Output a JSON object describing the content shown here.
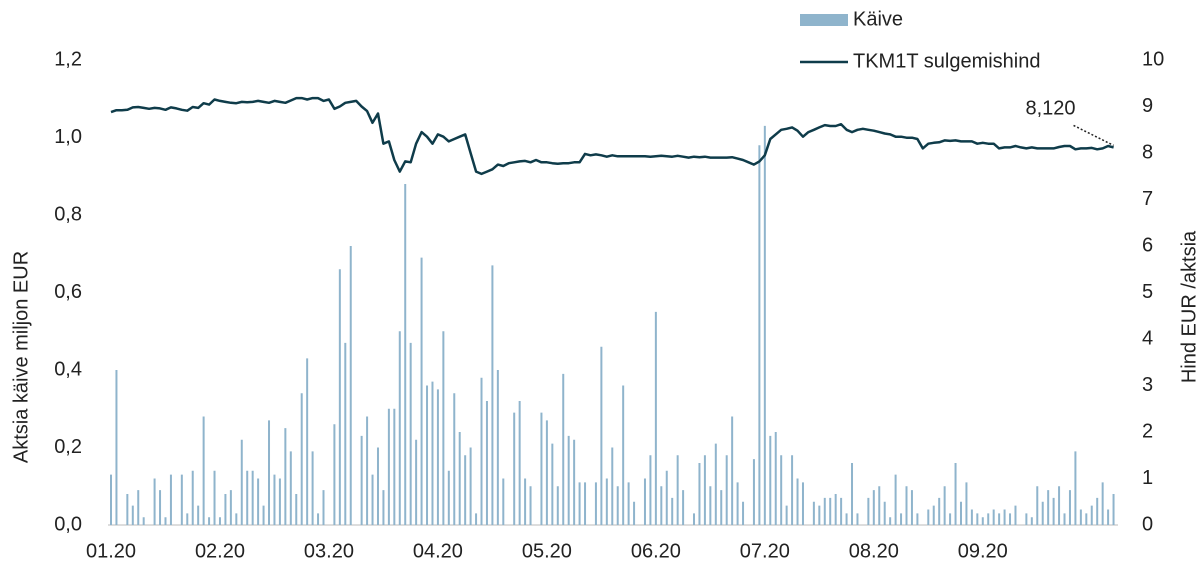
{
  "chart_data": {
    "type": "combo",
    "y_label": "Aktsia käive miljon EUR",
    "y2_label": "Hind EUR /aktsia",
    "categories": [
      "01.20",
      null,
      null,
      null,
      null,
      null,
      null,
      null,
      null,
      null,
      null,
      null,
      null,
      null,
      null,
      null,
      null,
      null,
      null,
      null,
      "02.20",
      null,
      null,
      null,
      null,
      null,
      null,
      null,
      null,
      null,
      null,
      null,
      null,
      null,
      null,
      null,
      null,
      null,
      null,
      null,
      "03.20",
      null,
      null,
      null,
      null,
      null,
      null,
      null,
      null,
      null,
      null,
      null,
      null,
      null,
      null,
      null,
      null,
      null,
      null,
      null,
      "04.20",
      null,
      null,
      null,
      null,
      null,
      null,
      null,
      null,
      null,
      null,
      null,
      null,
      null,
      null,
      null,
      null,
      null,
      null,
      null,
      "05.20",
      null,
      null,
      null,
      null,
      null,
      null,
      null,
      null,
      null,
      null,
      null,
      null,
      null,
      null,
      null,
      null,
      null,
      null,
      null,
      "06.20",
      null,
      null,
      null,
      null,
      null,
      null,
      null,
      null,
      null,
      null,
      null,
      null,
      null,
      null,
      null,
      null,
      null,
      null,
      null,
      "07.20",
      null,
      null,
      null,
      null,
      null,
      null,
      null,
      null,
      null,
      null,
      null,
      null,
      null,
      null,
      null,
      null,
      null,
      null,
      null,
      "08.20",
      null,
      null,
      null,
      null,
      null,
      null,
      null,
      null,
      null,
      null,
      null,
      null,
      null,
      null,
      null,
      null,
      null,
      null,
      null,
      "09.20",
      null,
      null,
      null,
      null,
      null,
      null,
      null,
      null,
      null,
      null,
      null,
      null,
      null,
      null,
      null,
      null,
      null,
      null,
      null,
      null,
      null,
      null,
      null,
      null
    ],
    "series": [
      {
        "name": "Käive",
        "type": "bar",
        "color": "#8fb4cc",
        "values": [
          0.13,
          0.4,
          0.0,
          0.08,
          0.05,
          0.09,
          0.02,
          0.0,
          0.12,
          0.09,
          0.02,
          0.13,
          0.0,
          0.13,
          0.03,
          0.14,
          0.05,
          0.28,
          0.02,
          0.14,
          0.02,
          0.08,
          0.09,
          0.03,
          0.22,
          0.14,
          0.14,
          0.12,
          0.05,
          0.27,
          0.13,
          0.12,
          0.25,
          0.19,
          0.08,
          0.34,
          0.43,
          0.19,
          0.03,
          0.09,
          0.0,
          0.26,
          0.66,
          0.47,
          0.72,
          0.0,
          0.23,
          0.28,
          0.13,
          0.2,
          0.09,
          0.3,
          0.3,
          0.5,
          0.88,
          0.47,
          0.22,
          0.69,
          0.36,
          0.37,
          0.35,
          0.5,
          0.14,
          0.34,
          0.24,
          0.18,
          0.2,
          0.03,
          0.38,
          0.32,
          0.67,
          0.4,
          0.12,
          0.0,
          0.29,
          0.32,
          0.12,
          0.1,
          0.0,
          0.29,
          0.27,
          0.21,
          0.1,
          0.39,
          0.23,
          0.22,
          0.11,
          0.11,
          0.0,
          0.11,
          0.46,
          0.12,
          0.2,
          0.1,
          0.36,
          0.11,
          0.06,
          0.0,
          0.12,
          0.18,
          0.55,
          0.1,
          0.14,
          0.07,
          0.18,
          0.09,
          0.0,
          0.03,
          0.16,
          0.18,
          0.1,
          0.21,
          0.09,
          0.18,
          0.28,
          0.11,
          0.06,
          0.0,
          0.17,
          0.98,
          1.03,
          0.23,
          0.24,
          0.18,
          0.05,
          0.18,
          0.12,
          0.11,
          0.0,
          0.06,
          0.05,
          0.07,
          0.07,
          0.08,
          0.07,
          0.03,
          0.16,
          0.03,
          0.0,
          0.07,
          0.09,
          0.1,
          0.06,
          0.02,
          0.13,
          0.03,
          0.1,
          0.09,
          0.03,
          0.0,
          0.04,
          0.05,
          0.07,
          0.1,
          0.03,
          0.16,
          0.06,
          0.11,
          0.04,
          0.03,
          0.02,
          0.03,
          0.04,
          0.03,
          0.04,
          0.03,
          0.05,
          0.0,
          0.03,
          0.02,
          0.1,
          0.06,
          0.09,
          0.07,
          0.1,
          0.03,
          0.09,
          0.19,
          0.04,
          0.03,
          0.05,
          0.07,
          0.11,
          0.04,
          0.08
        ]
      },
      {
        "name": "TKM1T sulgemishind",
        "type": "line",
        "axis": "y2",
        "color": "#0f3c4a",
        "values": [
          8.88,
          8.92,
          8.92,
          8.93,
          8.98,
          8.99,
          8.97,
          8.95,
          8.97,
          8.96,
          8.93,
          8.98,
          8.96,
          8.93,
          8.91,
          8.99,
          8.97,
          9.07,
          9.04,
          9.15,
          9.12,
          9.1,
          9.08,
          9.07,
          9.1,
          9.09,
          9.1,
          9.12,
          9.1,
          9.08,
          9.12,
          9.1,
          9.08,
          9.13,
          9.18,
          9.18,
          9.15,
          9.18,
          9.18,
          9.12,
          9.15,
          8.95,
          9.0,
          9.08,
          9.1,
          9.12,
          9.0,
          8.9,
          8.65,
          8.85,
          8.2,
          8.25,
          7.85,
          7.6,
          7.82,
          7.8,
          8.2,
          8.45,
          8.35,
          8.2,
          8.4,
          8.35,
          8.25,
          8.3,
          8.35,
          8.4,
          8.0,
          7.6,
          7.55,
          7.6,
          7.65,
          7.75,
          7.72,
          7.78,
          7.8,
          7.82,
          7.83,
          7.8,
          7.85,
          7.8,
          7.8,
          7.78,
          7.77,
          7.78,
          7.78,
          7.8,
          7.8,
          7.98,
          7.95,
          7.97,
          7.95,
          7.92,
          7.95,
          7.93,
          7.93,
          7.93,
          7.93,
          7.93,
          7.93,
          7.92,
          7.93,
          7.94,
          7.93,
          7.92,
          7.94,
          7.92,
          7.9,
          7.92,
          7.91,
          7.92,
          7.9,
          7.9,
          7.9,
          7.9,
          7.91,
          7.88,
          7.85,
          7.8,
          7.75,
          7.82,
          7.95,
          8.3,
          8.4,
          8.5,
          8.52,
          8.55,
          8.48,
          8.35,
          8.45,
          8.5,
          8.55,
          8.6,
          8.58,
          8.58,
          8.62,
          8.5,
          8.45,
          8.5,
          8.52,
          8.5,
          8.48,
          8.45,
          8.42,
          8.4,
          8.35,
          8.35,
          8.33,
          8.33,
          8.3,
          8.1,
          8.2,
          8.22,
          8.23,
          8.27,
          8.26,
          8.27,
          8.25,
          8.25,
          8.25,
          8.2,
          8.22,
          8.2,
          8.2,
          8.1,
          8.12,
          8.12,
          8.15,
          8.12,
          8.1,
          8.12,
          8.1,
          8.1,
          8.1,
          8.1,
          8.13,
          8.15,
          8.15,
          8.08,
          8.1,
          8.1,
          8.11,
          8.08,
          8.1,
          8.15,
          8.12
        ],
        "value_labels": [
          null,
          null,
          null,
          null,
          null,
          null,
          null,
          null,
          null,
          null,
          null,
          null,
          null,
          null,
          null,
          null,
          null,
          null,
          null,
          null,
          null,
          null,
          null,
          null,
          null,
          null,
          null,
          null,
          null,
          null,
          null,
          null,
          null,
          null,
          null,
          null,
          null,
          null,
          null,
          null,
          null,
          null,
          null,
          null,
          null,
          null,
          null,
          null,
          null,
          null,
          null,
          null,
          null,
          null,
          null,
          null,
          null,
          null,
          null,
          null,
          null,
          null,
          null,
          null,
          null,
          null,
          null,
          null,
          null,
          null,
          null,
          null,
          null,
          null,
          null,
          null,
          null,
          null,
          null,
          null,
          null,
          null,
          null,
          null,
          null,
          null,
          null,
          null,
          null,
          null,
          null,
          null,
          null,
          null,
          null,
          null,
          null,
          null,
          null,
          null,
          null,
          null,
          null,
          null,
          null,
          null,
          null,
          null,
          null,
          null,
          null,
          null,
          null,
          null,
          null,
          null,
          null,
          null,
          null,
          null,
          null,
          null,
          null,
          null,
          null,
          null,
          null,
          null,
          null,
          null,
          null,
          null,
          null,
          null,
          null,
          null,
          null,
          null,
          null,
          null,
          null,
          null,
          null,
          null,
          null,
          null,
          null,
          null,
          null,
          null,
          null,
          null,
          null,
          null,
          null,
          null,
          null,
          null,
          null,
          null,
          null,
          null,
          null,
          null,
          null,
          null,
          null,
          null,
          null,
          null,
          null,
          null,
          null,
          null,
          null,
          null,
          null,
          null,
          null,
          null,
          null,
          null,
          null,
          null,
          "8,120"
        ]
      }
    ],
    "ylim": [
      0,
      1.2
    ],
    "yticks": [
      {
        "value": 0,
        "label": "0,0"
      },
      {
        "value": 0.2,
        "label": "0,2"
      },
      {
        "value": 0.4,
        "label": "0,4"
      },
      {
        "value": 0.6,
        "label": "0,6"
      },
      {
        "value": 0.8,
        "label": "0,8"
      },
      {
        "value": 1.0,
        "label": "1,0"
      },
      {
        "value": 1.2,
        "label": "1,2"
      }
    ],
    "y2lim": [
      0,
      10
    ],
    "y2ticks": [
      0,
      1,
      2,
      3,
      4,
      5,
      6,
      7,
      8,
      9,
      10
    ],
    "grid": false,
    "legend": "top-right"
  }
}
